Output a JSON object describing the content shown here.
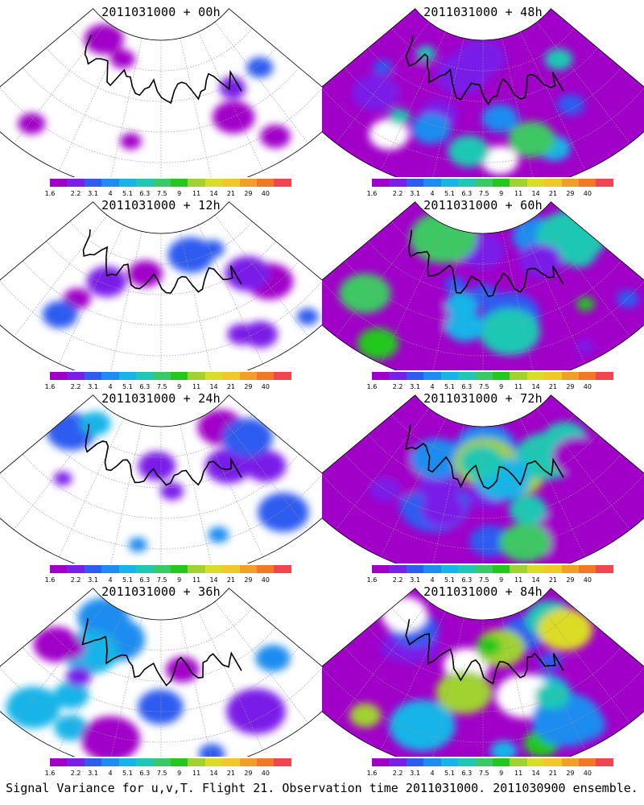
{
  "panels": [
    {
      "title": "2011031000 + 00h",
      "intensity": 0.05
    },
    {
      "title": "2011031000 + 48h",
      "intensity": 0.55
    },
    {
      "title": "2011031000 + 12h",
      "intensity": 0.15
    },
    {
      "title": "2011031000 + 60h",
      "intensity": 0.65
    },
    {
      "title": "2011031000 + 24h",
      "intensity": 0.28
    },
    {
      "title": "2011031000 + 72h",
      "intensity": 0.78
    },
    {
      "title": "2011031000 + 36h",
      "intensity": 0.4
    },
    {
      "title": "2011031000 + 84h",
      "intensity": 0.9
    }
  ],
  "colorbar": {
    "colors": [
      "#a000c8",
      "#7a1ee8",
      "#2e5cf0",
      "#1e8cf0",
      "#18b4e8",
      "#1ec8b4",
      "#3cc864",
      "#22c81e",
      "#a0d232",
      "#dcdc28",
      "#f0c828",
      "#f0a028",
      "#f07828",
      "#f04650"
    ],
    "labels": [
      "1.6",
      "2.2",
      "3.1",
      "4",
      "5.1",
      "6.3",
      "7.5",
      "9",
      "11",
      "14",
      "21",
      "29",
      "40"
    ]
  },
  "caption": "Signal Variance for u,v,T. Flight 21. Observation time 2011031000. 2011030900 ensemble."
}
